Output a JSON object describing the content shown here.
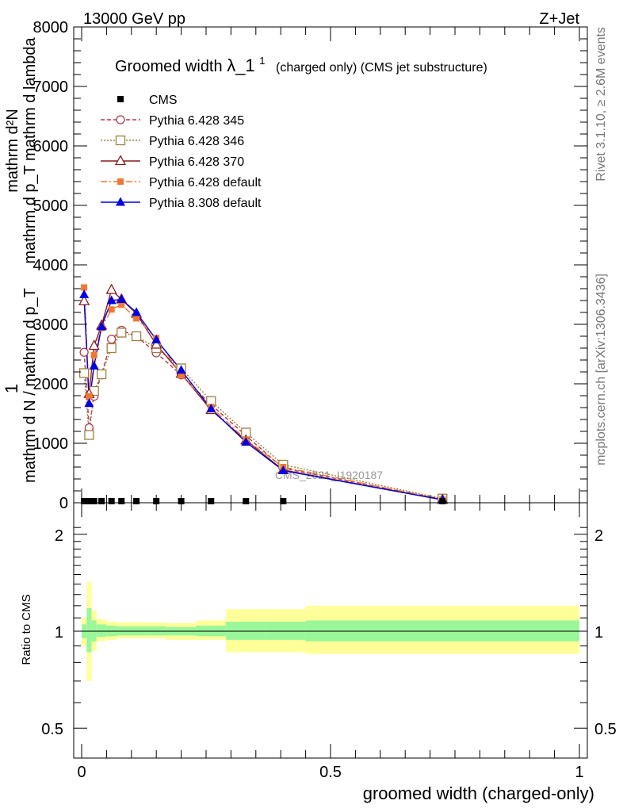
{
  "header": {
    "left": "13000 GeV pp",
    "right": "Z+Jet",
    "title_main": "Groomed width",
    "title_lambda": "λ_1",
    "title_sup": "1",
    "title_sub": "(charged only) (CMS jet substructure)",
    "side_rivet": "Rivet 3.1.10, ≥ 2.6M events",
    "side_mcplots": "mcplots.cern.ch [arXiv:1306.3436]",
    "watermark": "CMS_2021_I1920187"
  },
  "ylabel_main": {
    "one": "1",
    "den": "mathrm d N / mathrm d p_T",
    "num": "mathrm d²N",
    "den2": "mathrm d p_T mathrm d lambda"
  },
  "ylabel_ratio": "Ratio to CMS",
  "xlabel": "groomed width (charged-only)",
  "colors": {
    "cms": "#000000",
    "p345": "#b03a4b",
    "p346": "#a08040",
    "p370": "#8b1a1a",
    "p6def": "#f07830",
    "p8def": "#0000e0",
    "band_inner": "#99f799",
    "band_outer": "#ffff99"
  },
  "chart_data": {
    "type": "line",
    "x_range": [
      0,
      1
    ],
    "main_y_range": [
      0,
      8000
    ],
    "main_y_ticks": [
      0,
      1000,
      2000,
      3000,
      4000,
      5000,
      6000,
      7000,
      8000
    ],
    "ratio_y_ticks": [
      0.5,
      1,
      2
    ],
    "x_tick_labels": [
      "0",
      "0.5",
      "1"
    ],
    "x": [
      0.005,
      0.015,
      0.025,
      0.04,
      0.06,
      0.08,
      0.11,
      0.15,
      0.2,
      0.26,
      0.33,
      0.405,
      0.725
    ],
    "bin_edges": [
      0.0,
      0.01,
      0.02,
      0.03,
      0.05,
      0.07,
      0.09,
      0.13,
      0.17,
      0.23,
      0.29,
      0.37,
      0.45,
      1.0
    ],
    "legend": {
      "position": "top-left",
      "entries": [
        {
          "key": "cms",
          "label": "CMS"
        },
        {
          "key": "p345",
          "label": "Pythia 6.428 345"
        },
        {
          "key": "p346",
          "label": "Pythia 6.428 346"
        },
        {
          "key": "p370",
          "label": "Pythia 6.428 370"
        },
        {
          "key": "p6def",
          "label": "Pythia 6.428 default"
        },
        {
          "key": "p8def",
          "label": "Pythia 8.308 default"
        }
      ]
    },
    "series": [
      {
        "key": "cms",
        "name": "CMS",
        "marker": "square",
        "values": [
          0,
          0,
          0,
          0,
          0,
          0,
          0,
          0,
          0,
          0,
          0,
          0,
          0
        ]
      },
      {
        "key": "p345",
        "name": "Pythia 6.428 345",
        "marker": "circle-open",
        "dash": "5,3",
        "values": [
          2530,
          1260,
          1790,
          2150,
          2750,
          2900,
          2800,
          2520,
          2150,
          1650,
          1130,
          580,
          60
        ]
      },
      {
        "key": "p346",
        "name": "Pythia 6.428 346",
        "marker": "square-open",
        "dash": "2,2",
        "values": [
          2180,
          1140,
          1880,
          2160,
          2600,
          2860,
          2800,
          2600,
          2260,
          1710,
          1180,
          640,
          70
        ]
      },
      {
        "key": "p370",
        "name": "Pythia 6.428 370",
        "marker": "triangle-open",
        "dash": "",
        "values": [
          3390,
          1830,
          2640,
          2980,
          3580,
          3420,
          3180,
          2660,
          2170,
          1560,
          1050,
          550,
          50
        ]
      },
      {
        "key": "p6def",
        "name": "Pythia 6.428 default",
        "marker": "square-filled",
        "dash": "8,3,2,3",
        "values": [
          3620,
          1790,
          2480,
          2940,
          3250,
          3330,
          3100,
          2770,
          2150,
          1610,
          1060,
          600,
          55
        ]
      },
      {
        "key": "p8def",
        "name": "Pythia 8.308 default",
        "marker": "triangle-filled",
        "dash": "",
        "values": [
          3500,
          1670,
          2300,
          2960,
          3400,
          3420,
          3200,
          2740,
          2230,
          1580,
          1020,
          540,
          50
        ]
      }
    ],
    "ratio_band_inner": [
      [
        0.95,
        1.05
      ],
      [
        0.86,
        1.18
      ],
      [
        0.93,
        1.08
      ],
      [
        0.96,
        1.05
      ],
      [
        0.965,
        1.04
      ],
      [
        0.97,
        1.035
      ],
      [
        0.97,
        1.035
      ],
      [
        0.97,
        1.035
      ],
      [
        0.97,
        1.03
      ],
      [
        0.965,
        1.04
      ],
      [
        0.94,
        1.07
      ],
      [
        0.94,
        1.07
      ],
      [
        0.93,
        1.08
      ]
    ],
    "ratio_band_outer": [
      [
        0.9,
        1.1
      ],
      [
        0.7,
        1.42
      ],
      [
        0.87,
        1.16
      ],
      [
        0.93,
        1.09
      ],
      [
        0.94,
        1.07
      ],
      [
        0.95,
        1.065
      ],
      [
        0.95,
        1.065
      ],
      [
        0.95,
        1.065
      ],
      [
        0.94,
        1.06
      ],
      [
        0.94,
        1.08
      ],
      [
        0.86,
        1.17
      ],
      [
        0.86,
        1.17
      ],
      [
        0.85,
        1.2
      ]
    ]
  }
}
